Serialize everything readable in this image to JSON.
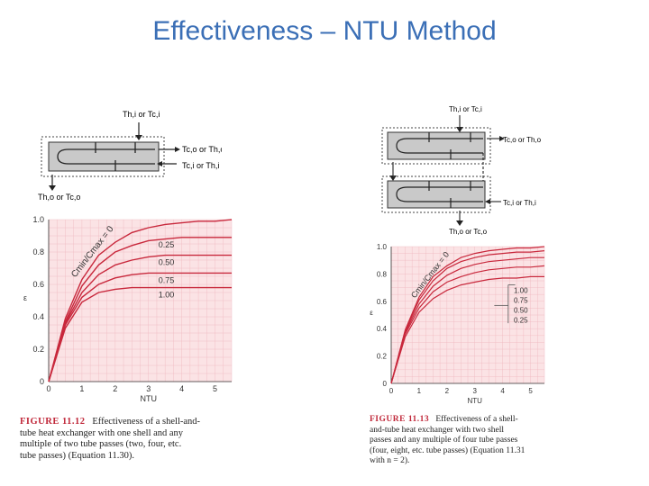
{
  "slide": {
    "title": "Effectiveness – NTU Method"
  },
  "colors": {
    "title": "#3b6fb6",
    "curve": "#c8283c",
    "plot_bg": "#fbe3e5",
    "grid": "#f0b8bf",
    "figure_label": "#c0283a"
  },
  "left": {
    "schematic": {
      "top_label": "Th,i or Tc,i",
      "right_upper": "Tc,o or Th,o",
      "right_lower": "Tc,i or Th,i",
      "bottom_label": "Th,o or Tc,o"
    },
    "caption": {
      "figure": "FIGURE 11.12",
      "lines": [
        "Effectiveness of a shell-and-",
        "tube heat exchanger with one shell and any",
        "multiple of two tube passes (two, four, etc.",
        "tube passes) (Equation 11.30)."
      ]
    }
  },
  "right": {
    "schematic": {
      "top_label": "Th,i or Tc,i",
      "right_upper": "Tc,o or Th,o",
      "right_lower": "Tc,i or Th,i",
      "bottom_label": "Th,o or Tc,o"
    },
    "caption": {
      "figure": "FIGURE 11.13",
      "lines": [
        "Effectiveness of a shell-",
        "and-tube heat exchanger with two shell",
        "passes and any multiple of four tube passes",
        "(four, eight, etc. tube passes) (Equation 11.31",
        "with n = 2)."
      ]
    }
  },
  "chart_data": [
    {
      "type": "line",
      "title": "",
      "xlabel": "NTU",
      "ylabel": "ε",
      "xlim": [
        0,
        5.5
      ],
      "ylim": [
        0,
        1.0
      ],
      "x_ticks": [
        "0",
        "1",
        "2",
        "3",
        "4",
        "5"
      ],
      "y_ticks": [
        "0",
        "0.2",
        "0.4",
        "0.6",
        "0.8",
        "1.0"
      ],
      "grid": true,
      "annotation": "Cmin/Cmax = 0",
      "series": [
        {
          "name": "0",
          "x": [
            0,
            0.5,
            1,
            1.5,
            2,
            2.5,
            3,
            3.5,
            4,
            4.5,
            5,
            5.5
          ],
          "y": [
            0,
            0.39,
            0.63,
            0.78,
            0.86,
            0.92,
            0.95,
            0.97,
            0.98,
            0.99,
            0.99,
            1.0
          ]
        },
        {
          "name": "0.25",
          "x": [
            0,
            0.5,
            1,
            1.5,
            2,
            2.5,
            3,
            3.5,
            4,
            4.5,
            5,
            5.5
          ],
          "y": [
            0,
            0.37,
            0.59,
            0.72,
            0.8,
            0.84,
            0.87,
            0.88,
            0.89,
            0.89,
            0.89,
            0.89
          ]
        },
        {
          "name": "0.50",
          "x": [
            0,
            0.5,
            1,
            1.5,
            2,
            2.5,
            3,
            3.5,
            4,
            4.5,
            5,
            5.5
          ],
          "y": [
            0,
            0.36,
            0.55,
            0.66,
            0.72,
            0.75,
            0.77,
            0.78,
            0.78,
            0.78,
            0.78,
            0.78
          ]
        },
        {
          "name": "0.75",
          "x": [
            0,
            0.5,
            1,
            1.5,
            2,
            2.5,
            3,
            3.5,
            4,
            4.5,
            5,
            5.5
          ],
          "y": [
            0,
            0.35,
            0.52,
            0.6,
            0.64,
            0.66,
            0.67,
            0.67,
            0.67,
            0.67,
            0.67,
            0.67
          ]
        },
        {
          "name": "1.00",
          "x": [
            0,
            0.5,
            1,
            1.5,
            2,
            2.5,
            3,
            3.5,
            4,
            4.5,
            5,
            5.5
          ],
          "y": [
            0,
            0.33,
            0.49,
            0.55,
            0.57,
            0.58,
            0.58,
            0.58,
            0.58,
            0.58,
            0.58,
            0.58
          ]
        }
      ]
    },
    {
      "type": "line",
      "title": "",
      "xlabel": "NTU",
      "ylabel": "ε",
      "xlim": [
        0,
        5.5
      ],
      "ylim": [
        0,
        1.0
      ],
      "x_ticks": [
        "0",
        "1",
        "2",
        "3",
        "4",
        "5"
      ],
      "y_ticks": [
        "0",
        "0.2",
        "0.4",
        "0.6",
        "0.8",
        "1.0"
      ],
      "grid": true,
      "annotation": "Cmin/Cmax = 0",
      "legend_values": [
        "1.00",
        "0.75",
        "0.50",
        "0.25"
      ],
      "series": [
        {
          "name": "0",
          "x": [
            0,
            0.5,
            1,
            1.5,
            2,
            2.5,
            3,
            3.5,
            4,
            4.5,
            5,
            5.5
          ],
          "y": [
            0,
            0.39,
            0.63,
            0.78,
            0.86,
            0.92,
            0.95,
            0.97,
            0.98,
            0.99,
            0.99,
            1.0
          ]
        },
        {
          "name": "0.25",
          "x": [
            0,
            0.5,
            1,
            1.5,
            2,
            2.5,
            3,
            3.5,
            4,
            4.5,
            5,
            5.5
          ],
          "y": [
            0,
            0.38,
            0.61,
            0.75,
            0.84,
            0.89,
            0.92,
            0.94,
            0.95,
            0.96,
            0.96,
            0.97
          ]
        },
        {
          "name": "0.50",
          "x": [
            0,
            0.5,
            1,
            1.5,
            2,
            2.5,
            3,
            3.5,
            4,
            4.5,
            5,
            5.5
          ],
          "y": [
            0,
            0.37,
            0.58,
            0.71,
            0.79,
            0.84,
            0.87,
            0.89,
            0.9,
            0.91,
            0.92,
            0.92
          ]
        },
        {
          "name": "0.75",
          "x": [
            0,
            0.5,
            1,
            1.5,
            2,
            2.5,
            3,
            3.5,
            4,
            4.5,
            5,
            5.5
          ],
          "y": [
            0,
            0.36,
            0.55,
            0.67,
            0.74,
            0.78,
            0.81,
            0.83,
            0.84,
            0.85,
            0.85,
            0.86
          ]
        },
        {
          "name": "1.00",
          "x": [
            0,
            0.5,
            1,
            1.5,
            2,
            2.5,
            3,
            3.5,
            4,
            4.5,
            5,
            5.5
          ],
          "y": [
            0,
            0.34,
            0.52,
            0.62,
            0.68,
            0.72,
            0.74,
            0.76,
            0.77,
            0.77,
            0.78,
            0.78
          ]
        }
      ]
    }
  ]
}
